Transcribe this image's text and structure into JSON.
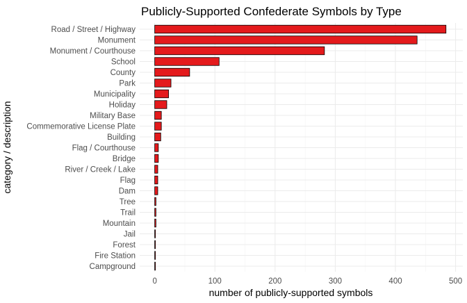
{
  "chart_data": {
    "type": "bar",
    "orientation": "horizontal",
    "title": "Publicly-Supported Confederate Symbols by Type",
    "xlabel": "number of publicly-supported symbols",
    "ylabel": "category / description",
    "xlim": [
      0,
      500
    ],
    "xticks": [
      0,
      100,
      200,
      300,
      400,
      500
    ],
    "grid": true,
    "bar_color": "#e41a1c",
    "categories": [
      "Road / Street / Highway",
      "Monument",
      "Monument / Courthouse",
      "School",
      "County",
      "Park",
      "Municipality",
      "Holiday",
      "Military Base",
      "Commemorative License Plate",
      "Building",
      "Flag / Courthouse",
      "Bridge",
      "River / Creek / Lake",
      "Flag",
      "Dam",
      "Tree",
      "Trail",
      "Mountain",
      "Jail",
      "Forest",
      "Fire Station",
      "Campground"
    ],
    "values": [
      484,
      436,
      282,
      107,
      58,
      27,
      23,
      20,
      11,
      11,
      10,
      6,
      6,
      5,
      5,
      5,
      2,
      2,
      2,
      1,
      1,
      1,
      1
    ]
  }
}
